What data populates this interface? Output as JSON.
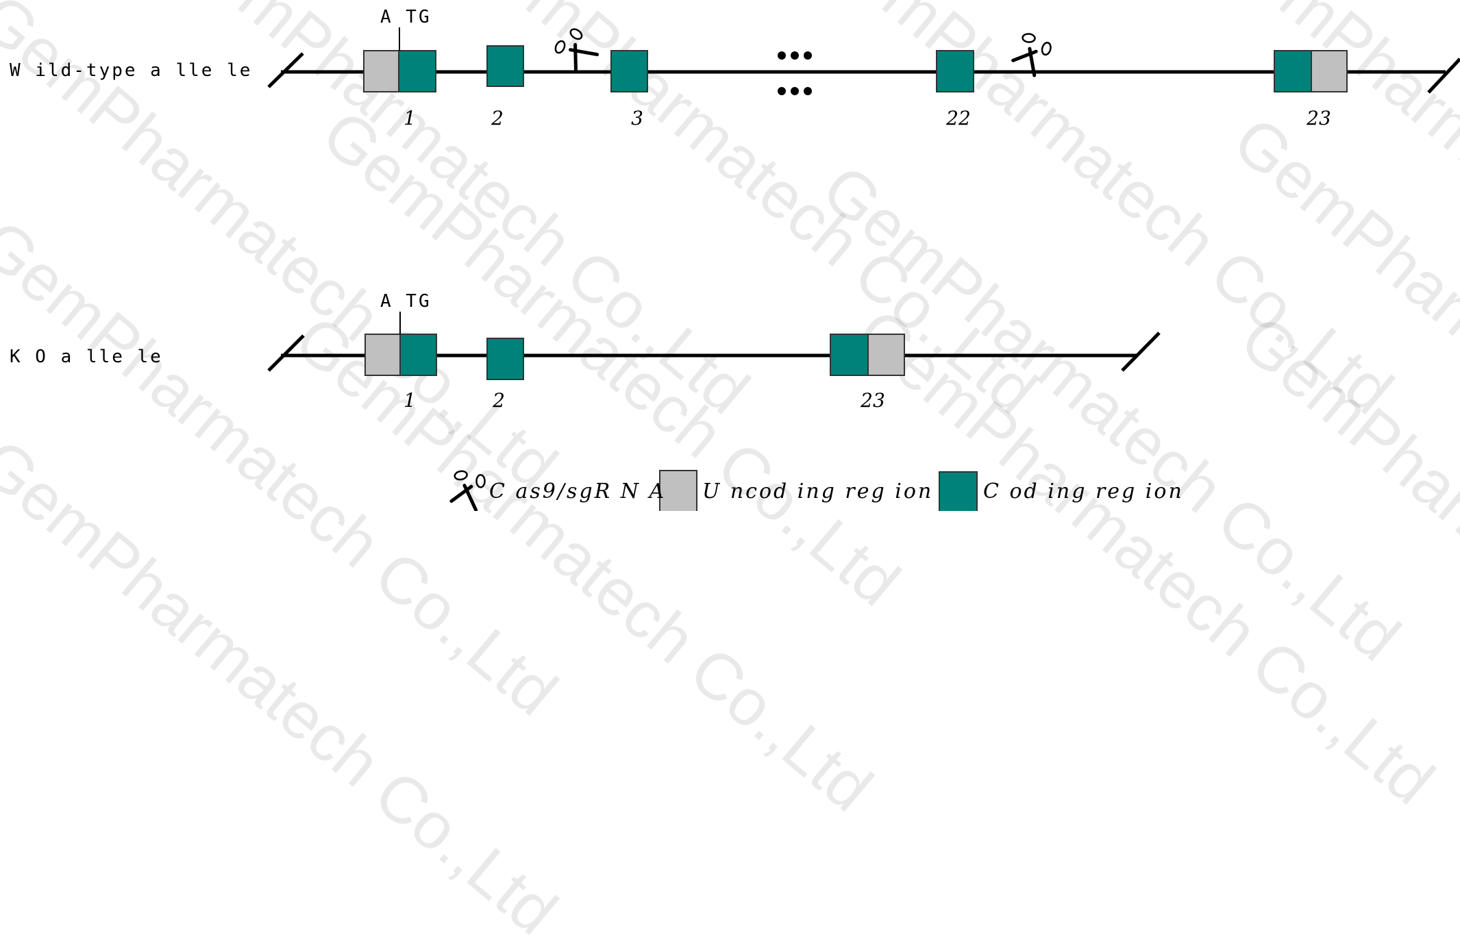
{
  "colors": {
    "coding": "#00827a",
    "uncoding": "#c0c0c0",
    "line": "#000000"
  },
  "alleles": {
    "wildtype": {
      "label": "W ild-type a lle le",
      "atg": "A TG",
      "exons": [
        {
          "number": "1"
        },
        {
          "number": "2"
        },
        {
          "number": "3"
        },
        {
          "number": "22"
        },
        {
          "number": "23"
        }
      ]
    },
    "ko": {
      "label": "K O  a lle le",
      "atg": "A TG",
      "exons": [
        {
          "number": "1"
        },
        {
          "number": "2"
        },
        {
          "number": "23"
        }
      ]
    }
  },
  "icons": {
    "scissors": "scissors-icon",
    "ellipsis": "ellipsis-icon"
  },
  "legend": {
    "cas9": "C as9/sgR N A",
    "uncoding": "U ncod ing reg ion",
    "coding": "C od ing reg ion"
  },
  "watermark": "GemPharmatech Co.,Ltd"
}
